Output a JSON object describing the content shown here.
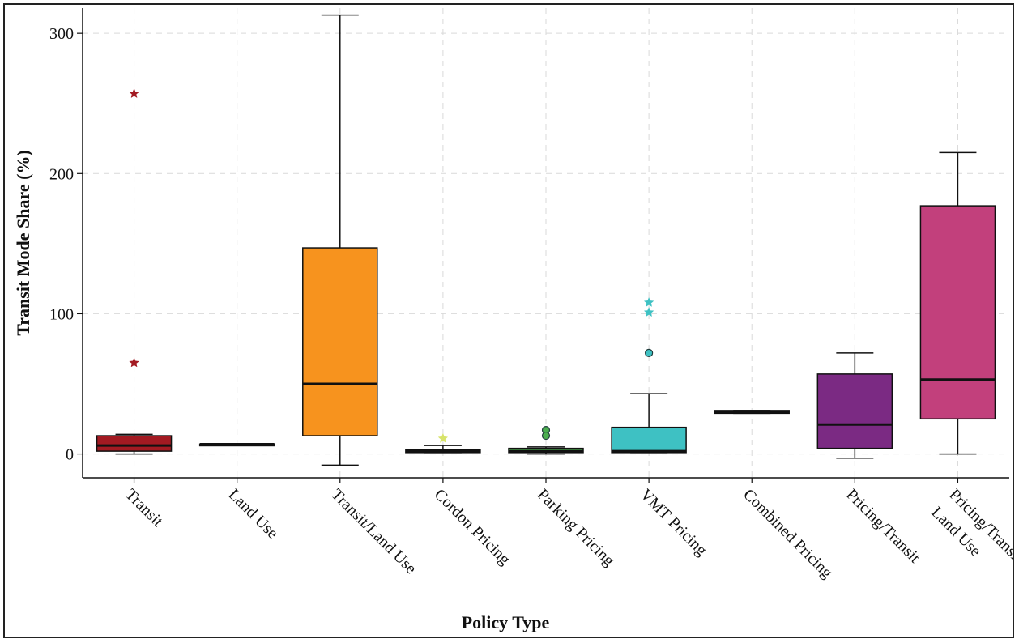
{
  "chart_data": {
    "type": "boxplot",
    "title": "",
    "xlabel": "Policy Type",
    "ylabel": "Transit Mode Share (%)",
    "ylim": [
      -17,
      318
    ],
    "yticks": [
      0,
      100,
      200,
      300
    ],
    "grid": true,
    "categories": [
      "Transit",
      "Land Use",
      "Transit/Land Use",
      "Cordon Pricing",
      "Parking Pricing",
      "VMT Pricing",
      "Combined Pricing",
      "Pricing/Transit",
      "Pricing/Transit/\nLand Use"
    ],
    "boxes": [
      {
        "category": "Transit",
        "color": "#a31a22",
        "whisker_low": 0,
        "q1": 2,
        "median": 6,
        "q3": 13,
        "whisker_high": 14,
        "outliers": [
          {
            "value": 257,
            "marker": "star"
          },
          {
            "value": 65,
            "marker": "star"
          }
        ]
      },
      {
        "category": "Land Use",
        "color": "#888888",
        "whisker_low": 7,
        "q1": 7,
        "median": 7,
        "q3": 7,
        "whisker_high": 7,
        "outliers": []
      },
      {
        "category": "Transit/Land Use",
        "color": "#f7931e",
        "whisker_low": -8,
        "q1": 13,
        "median": 50,
        "q3": 147,
        "whisker_high": 313,
        "outliers": []
      },
      {
        "category": "Cordon Pricing",
        "color": "#d7e36a",
        "whisker_low": 1,
        "q1": 1,
        "median": 2,
        "q3": 3,
        "whisker_high": 6,
        "outliers": [
          {
            "value": 11,
            "marker": "star"
          }
        ]
      },
      {
        "category": "Parking Pricing",
        "color": "#4caf50",
        "whisker_low": 0,
        "q1": 1,
        "median": 2,
        "q3": 4,
        "whisker_high": 5,
        "outliers": [
          {
            "value": 17,
            "marker": "circle"
          },
          {
            "value": 13,
            "marker": "circle"
          }
        ]
      },
      {
        "category": "VMT Pricing",
        "color": "#3ec1c3",
        "whisker_low": 1,
        "q1": 1,
        "median": 2,
        "q3": 19,
        "whisker_high": 43,
        "outliers": [
          {
            "value": 108,
            "marker": "star"
          },
          {
            "value": 101,
            "marker": "star"
          },
          {
            "value": 72,
            "marker": "circle"
          }
        ]
      },
      {
        "category": "Combined Pricing",
        "color": "#555555",
        "whisker_low": 29,
        "q1": 29,
        "median": 30,
        "q3": 31,
        "whisker_high": 31,
        "outliers": []
      },
      {
        "category": "Pricing/Transit",
        "color": "#7b2a83",
        "whisker_low": -3,
        "q1": 4,
        "median": 21,
        "q3": 57,
        "whisker_high": 72,
        "outliers": []
      },
      {
        "category": "Pricing/Transit/\nLand Use",
        "color": "#c2407c",
        "whisker_low": 0,
        "q1": 25,
        "median": 53,
        "q3": 177,
        "whisker_high": 215,
        "outliers": []
      }
    ]
  }
}
